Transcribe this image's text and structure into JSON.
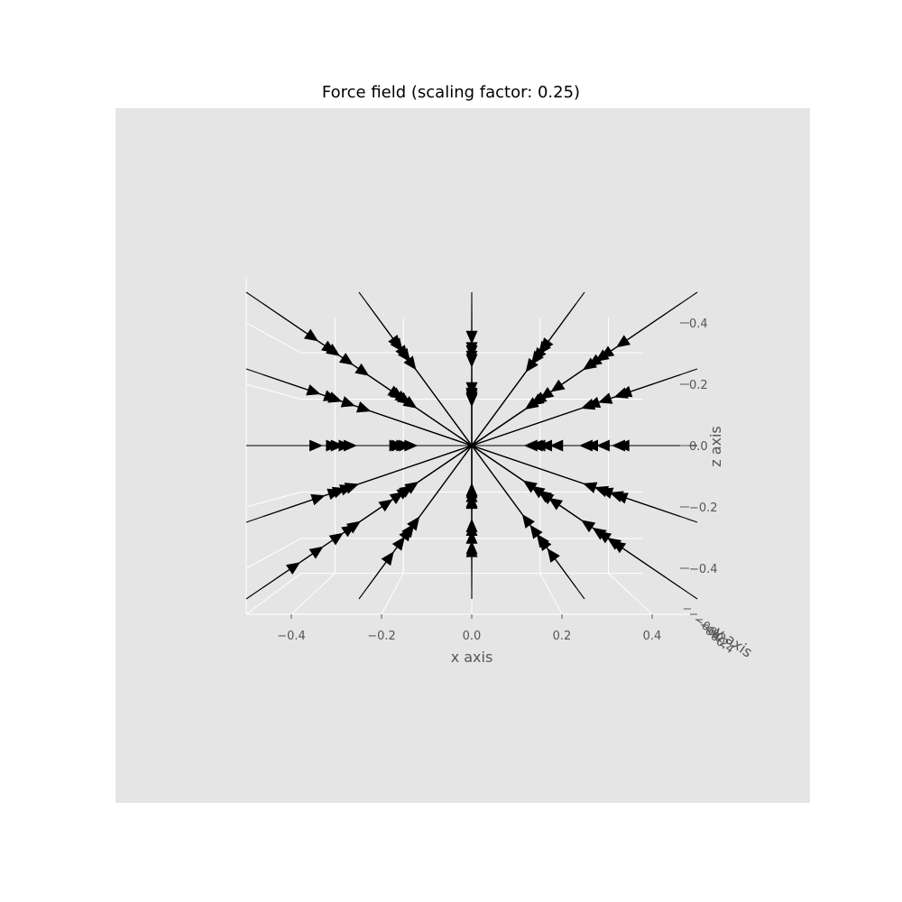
{
  "chart_data": {
    "type": "quiver3d",
    "title": "Force field (scaling factor: 0.25)",
    "xlabel": "x axis",
    "ylabel": "y axis",
    "zlabel": "z axis",
    "xlim": [
      -0.5,
      0.5
    ],
    "zlim": [
      -0.55,
      0.55
    ],
    "x_ticks": [
      "−0.4",
      "−0.2",
      "0.0",
      "0.2",
      "0.4"
    ],
    "x_tick_values": [
      -0.4,
      -0.2,
      0.0,
      0.2,
      0.4
    ],
    "z_ticks": [
      "0.4",
      "0.2",
      "0.0",
      "−0.2",
      "−0.4"
    ],
    "z_tick_values": [
      0.4,
      0.2,
      0.0,
      -0.2,
      -0.4
    ],
    "y_ticks": [
      "−0.4",
      "−0.2",
      "0.0",
      "0.2",
      "0.4"
    ],
    "grid_values": [
      -0.5,
      -0.25,
      0.0,
      0.25,
      0.5
    ],
    "arrow_direction": "toward origin",
    "scaling_factor": 0.25,
    "grid": true,
    "background_color": "#e5e5e5",
    "arrow_color": "#000000"
  }
}
